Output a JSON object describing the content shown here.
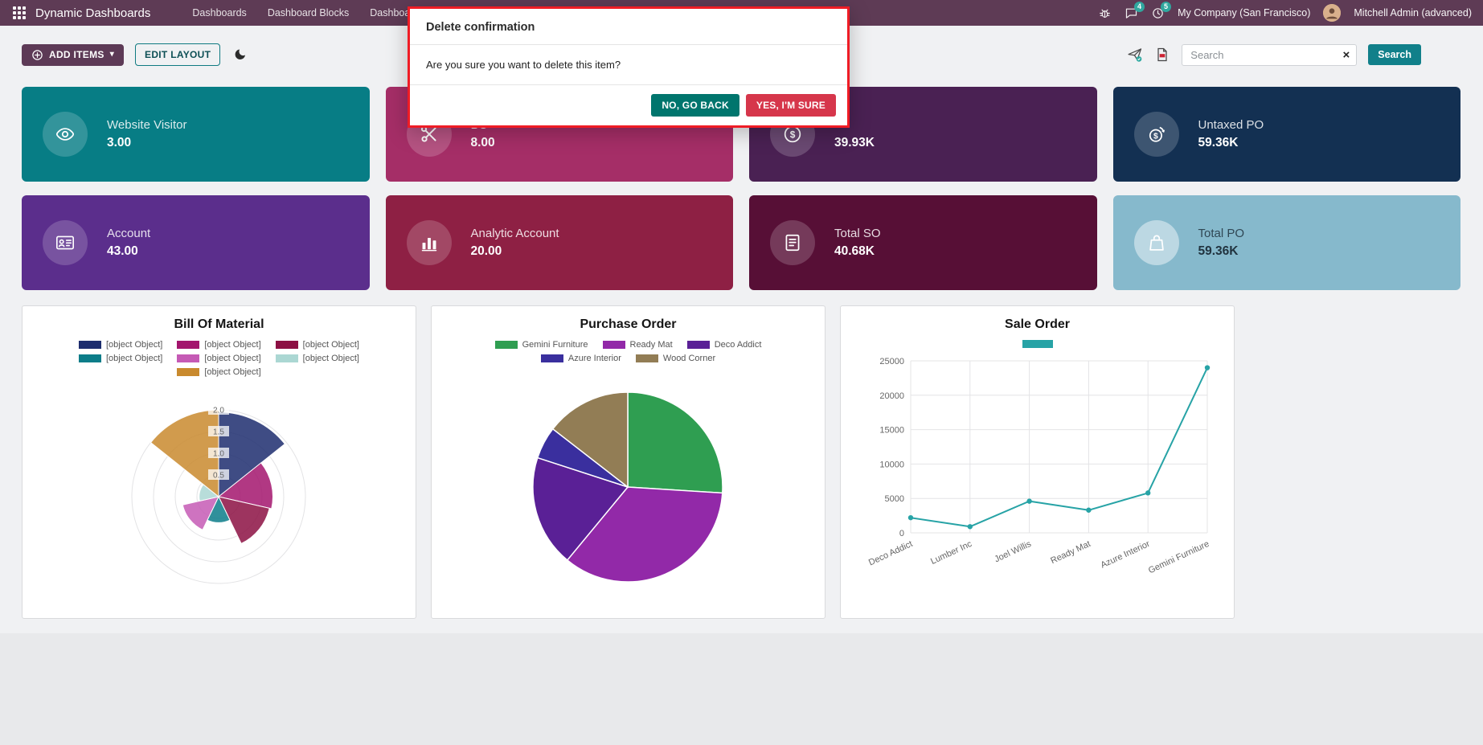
{
  "navbar": {
    "app_title": "Dynamic Dashboards",
    "menu_items": [
      {
        "label": "Dashboards"
      },
      {
        "label": "Dashboard Blocks"
      },
      {
        "label": "Dashboard Menu"
      }
    ],
    "messages_badge": "4",
    "activities_badge": "5",
    "company_name": "My Company (San Francisco)",
    "user_name": "Mitchell Admin (advanced)"
  },
  "toolbar": {
    "add_items_label": "ADD ITEMS",
    "edit_layout_label": "EDIT LAYOUT",
    "search_placeholder": "Search",
    "search_button_label": "Search"
  },
  "modal": {
    "title": "Delete confirmation",
    "body": "Are you sure you want to delete this item?",
    "cancel_label": "NO, GO BACK",
    "confirm_label": "YES, I'M SURE"
  },
  "tiles": [
    {
      "label": "Website Visitor",
      "value": "3.00",
      "color": "#077d85"
    },
    {
      "label": "BO",
      "value": "8.00",
      "color": "#a52e67"
    },
    {
      "label": "",
      "value": "39.93K",
      "color": "#4a2153"
    },
    {
      "label": "Untaxed PO",
      "value": "59.36K",
      "color": "#133052"
    },
    {
      "label": "Account",
      "value": "43.00",
      "color": "#5b2e8c"
    },
    {
      "label": "Analytic Account",
      "value": "20.00",
      "color": "#8e2044"
    },
    {
      "label": "Total SO",
      "value": "40.68K",
      "color": "#570f36"
    },
    {
      "label": "Total PO",
      "value": "59.36K",
      "color": "#86b9cc",
      "text_color": "#21333f"
    }
  ],
  "chart_data": [
    {
      "type": "polarArea",
      "title": "Bill Of Material",
      "r_max": 2.0,
      "r_ticks": [
        0.5,
        1.0,
        1.5,
        2.0
      ],
      "series": [
        {
          "label": "[object Object]",
          "value": 1.95,
          "color": "#1d2d6e"
        },
        {
          "label": "[object Object]",
          "value": 1.25,
          "color": "#a3156d"
        },
        {
          "label": "[object Object]",
          "value": 1.2,
          "color": "#8c1043"
        },
        {
          "label": "[object Object]",
          "value": 0.6,
          "color": "#0c7d89"
        },
        {
          "label": "[object Object]",
          "value": 0.85,
          "color": "#c55ab5"
        },
        {
          "label": "[object Object]",
          "value": 0.45,
          "color": "#abd7d3"
        },
        {
          "label": "[object Object]",
          "value": 2.0,
          "color": "#c98a2e"
        }
      ]
    },
    {
      "type": "pie",
      "title": "Purchase Order",
      "series": [
        {
          "label": "Gemini Furniture",
          "value": 26,
          "color": "#2f9e51"
        },
        {
          "label": "Ready Mat",
          "value": 35,
          "color": "#9229a8"
        },
        {
          "label": "Deco Addict",
          "value": 19,
          "color": "#5a2096"
        },
        {
          "label": "Azure Interior",
          "value": 5.5,
          "color": "#3a2f9e"
        },
        {
          "label": "Wood Corner",
          "value": 14.5,
          "color": "#927d55"
        }
      ]
    },
    {
      "type": "line",
      "title": "Sale Order",
      "color": "#27a3a6",
      "legend": [
        {
          "label": "",
          "color": "#27a3a6"
        }
      ],
      "categories": [
        "Deco Addict",
        "Lumber Inc",
        "Joel Willis",
        "Ready Mat",
        "Azure Interior",
        "Gemini Furniture"
      ],
      "values": [
        2200,
        900,
        4600,
        3300,
        5800,
        24000
      ],
      "y_ticks": [
        0,
        5000,
        10000,
        15000,
        20000,
        25000
      ],
      "ylim": [
        0,
        25000
      ]
    }
  ]
}
